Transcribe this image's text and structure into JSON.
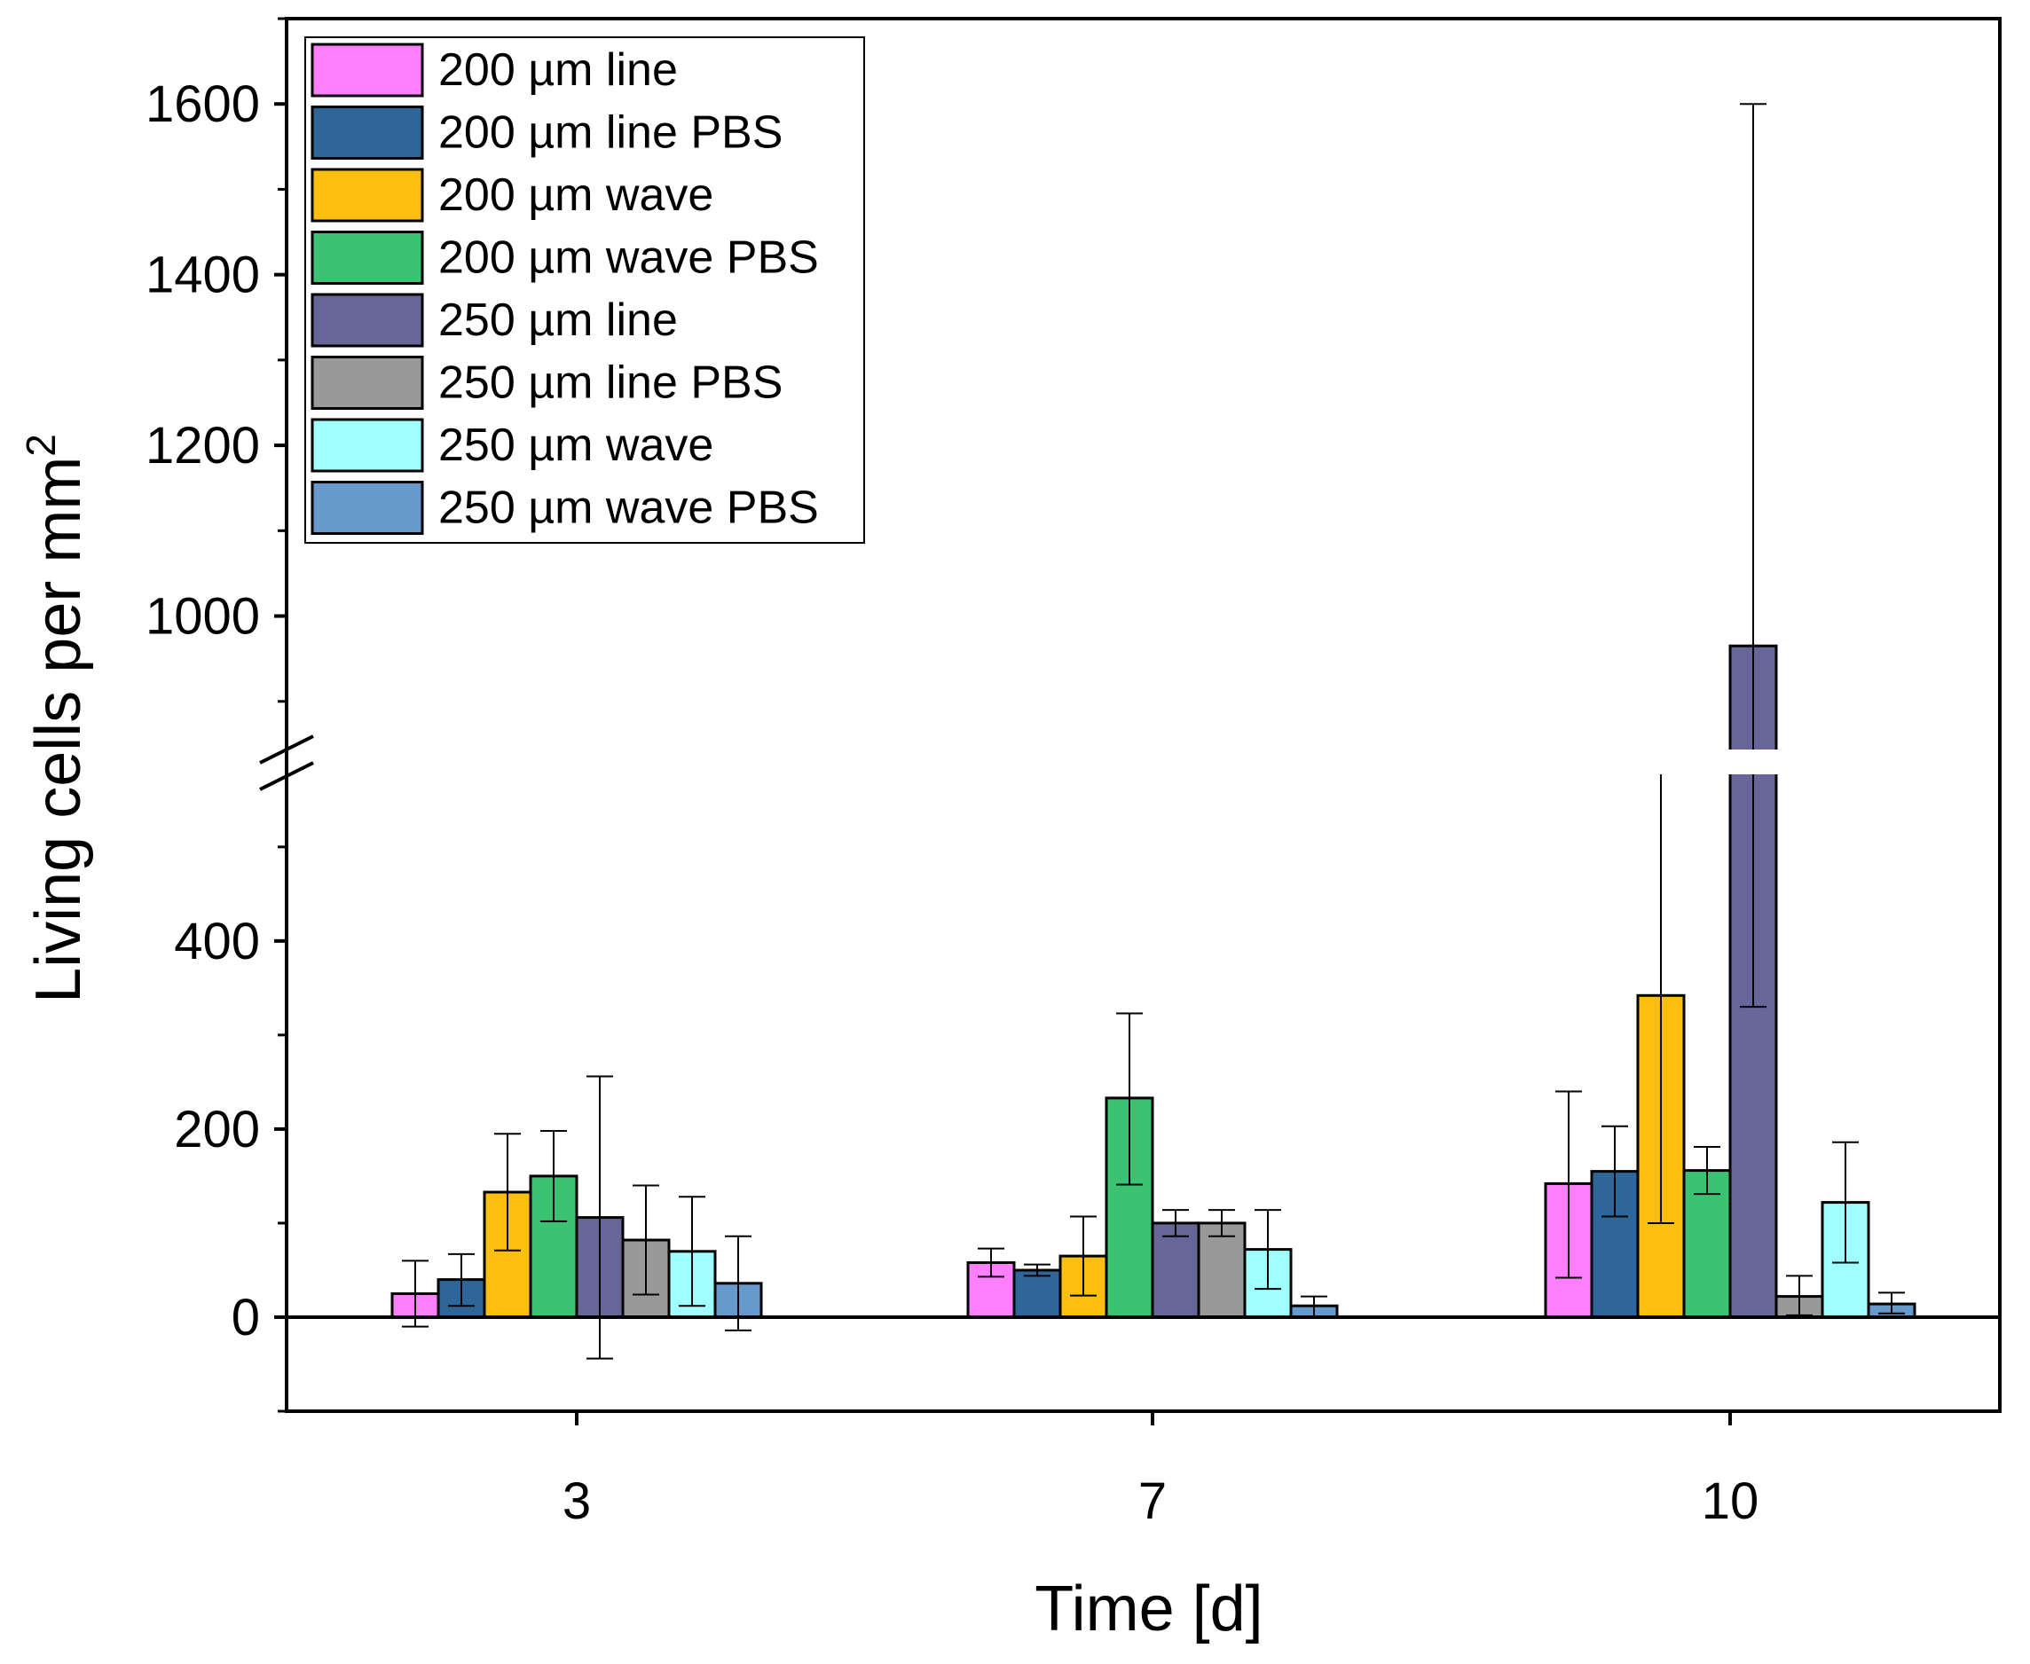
{
  "chart_data": {
    "type": "bar",
    "xlabel": "Time [d]",
    "ylabel": "Living cells per mm",
    "ylabel_sup": "2",
    "categories": [
      "3",
      "7",
      "10"
    ],
    "y_broken": true,
    "y_break": [
      580,
      880
    ],
    "ylim": [
      -100,
      1700
    ],
    "yticks": [
      0,
      200,
      400,
      1000,
      1200,
      1400,
      1600
    ],
    "legend_position": "top-left",
    "series": [
      {
        "name": "200 µm line",
        "color": "#ff80ff",
        "values": [
          25,
          58,
          142
        ],
        "err_low": [
          35,
          15,
          100
        ],
        "err_high": [
          35,
          15,
          98
        ]
      },
      {
        "name": "200 µm line PBS",
        "color": "#2f6699",
        "values": [
          40,
          50,
          155
        ],
        "err_low": [
          28,
          6,
          48
        ],
        "err_high": [
          27,
          6,
          48
        ]
      },
      {
        "name": "200 µm wave",
        "color": "#fcbf10",
        "values": [
          133,
          65,
          342
        ],
        "err_low": [
          62,
          42,
          242
        ],
        "err_high": [
          62,
          42,
          244
        ]
      },
      {
        "name": "200 µm wave PBS",
        "color": "#3cc372",
        "values": [
          150,
          233,
          156
        ],
        "err_low": [
          48,
          92,
          25
        ],
        "err_high": [
          48,
          90,
          25
        ]
      },
      {
        "name": "250 µm line",
        "color": "#666699",
        "values": [
          106,
          100,
          965
        ],
        "err_low": [
          150,
          14,
          635
        ],
        "err_high": [
          150,
          14,
          635
        ]
      },
      {
        "name": "250 µm line PBS",
        "color": "#999999",
        "values": [
          82,
          100,
          22
        ],
        "err_low": [
          58,
          14,
          20
        ],
        "err_high": [
          58,
          14,
          22
        ]
      },
      {
        "name": "250 µm wave",
        "color": "#a0ffff",
        "values": [
          70,
          72,
          122
        ],
        "err_low": [
          58,
          42,
          64
        ],
        "err_high": [
          58,
          42,
          64
        ]
      },
      {
        "name": "250 µm wave PBS",
        "color": "#6699cc",
        "values": [
          36,
          12,
          14
        ],
        "err_low": [
          50,
          12,
          10
        ],
        "err_high": [
          50,
          10,
          12
        ]
      }
    ]
  }
}
